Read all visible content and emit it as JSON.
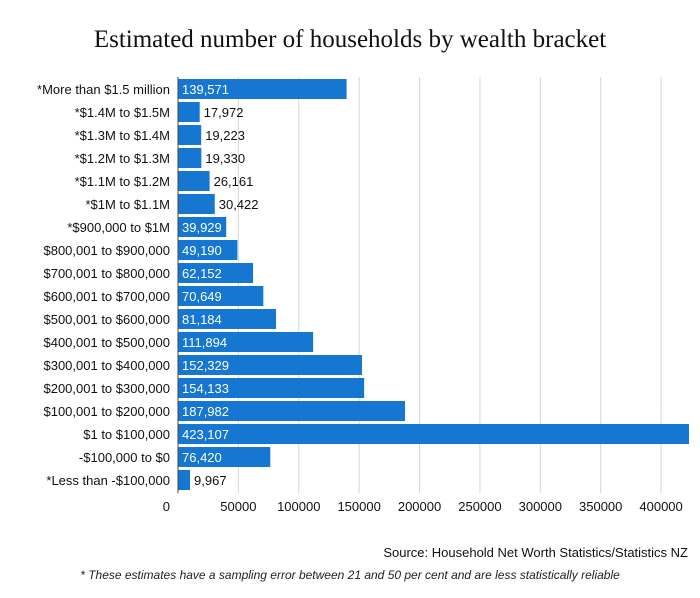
{
  "chart_data": {
    "type": "bar",
    "orientation": "horizontal",
    "title": "Estimated number of households by wealth bracket",
    "categories": [
      "*More than $1.5 million",
      "*$1.4M to $1.5M",
      "*$1.3M to $1.4M",
      "*$1.2M to $1.3M",
      "*$1.1M to $1.2M",
      "*$1M to $1.1M",
      "*$900,000 to $1M",
      "$800,001 to $900,000",
      "$700,001 to $800,000",
      "$600,001 to $700,000",
      "$500,001 to $600,000",
      "$400,001 to $500,000",
      "$300,001 to $400,000",
      "$200,001 to $300,000",
      "$100,001 to $200,000",
      "$1 to $100,000",
      "-$100,000 to $0",
      "*Less than -$100,000"
    ],
    "values": [
      139571,
      17972,
      19223,
      19330,
      26161,
      30422,
      39929,
      49190,
      62152,
      70649,
      81184,
      111894,
      152329,
      154133,
      187982,
      423107,
      76420,
      9967
    ],
    "data_labels": [
      "139,571",
      "17,972",
      "19,223",
      "19,330",
      "26,161",
      "30,422",
      "39,929",
      "49,190",
      "62,152",
      "70,649",
      "81,184",
      "111,894",
      "152,329",
      "154,133",
      "187,982",
      "423,107",
      "76,420",
      "9,967"
    ],
    "x_ticks": [
      "0",
      "50000",
      "100000",
      "150000",
      "200000",
      "250000",
      "300000",
      "350000",
      "400000"
    ],
    "x_tick_values": [
      0,
      50000,
      100000,
      150000,
      200000,
      250000,
      300000,
      350000,
      400000
    ],
    "xlim": [
      0,
      423107
    ],
    "grid": true,
    "bar_color": "#1577d1",
    "source": "Source: Household Net Worth Statistics/Statistics NZ",
    "footnote": "* These estimates have a sampling error between 21 and 50 per cent and are less statistically reliable"
  }
}
